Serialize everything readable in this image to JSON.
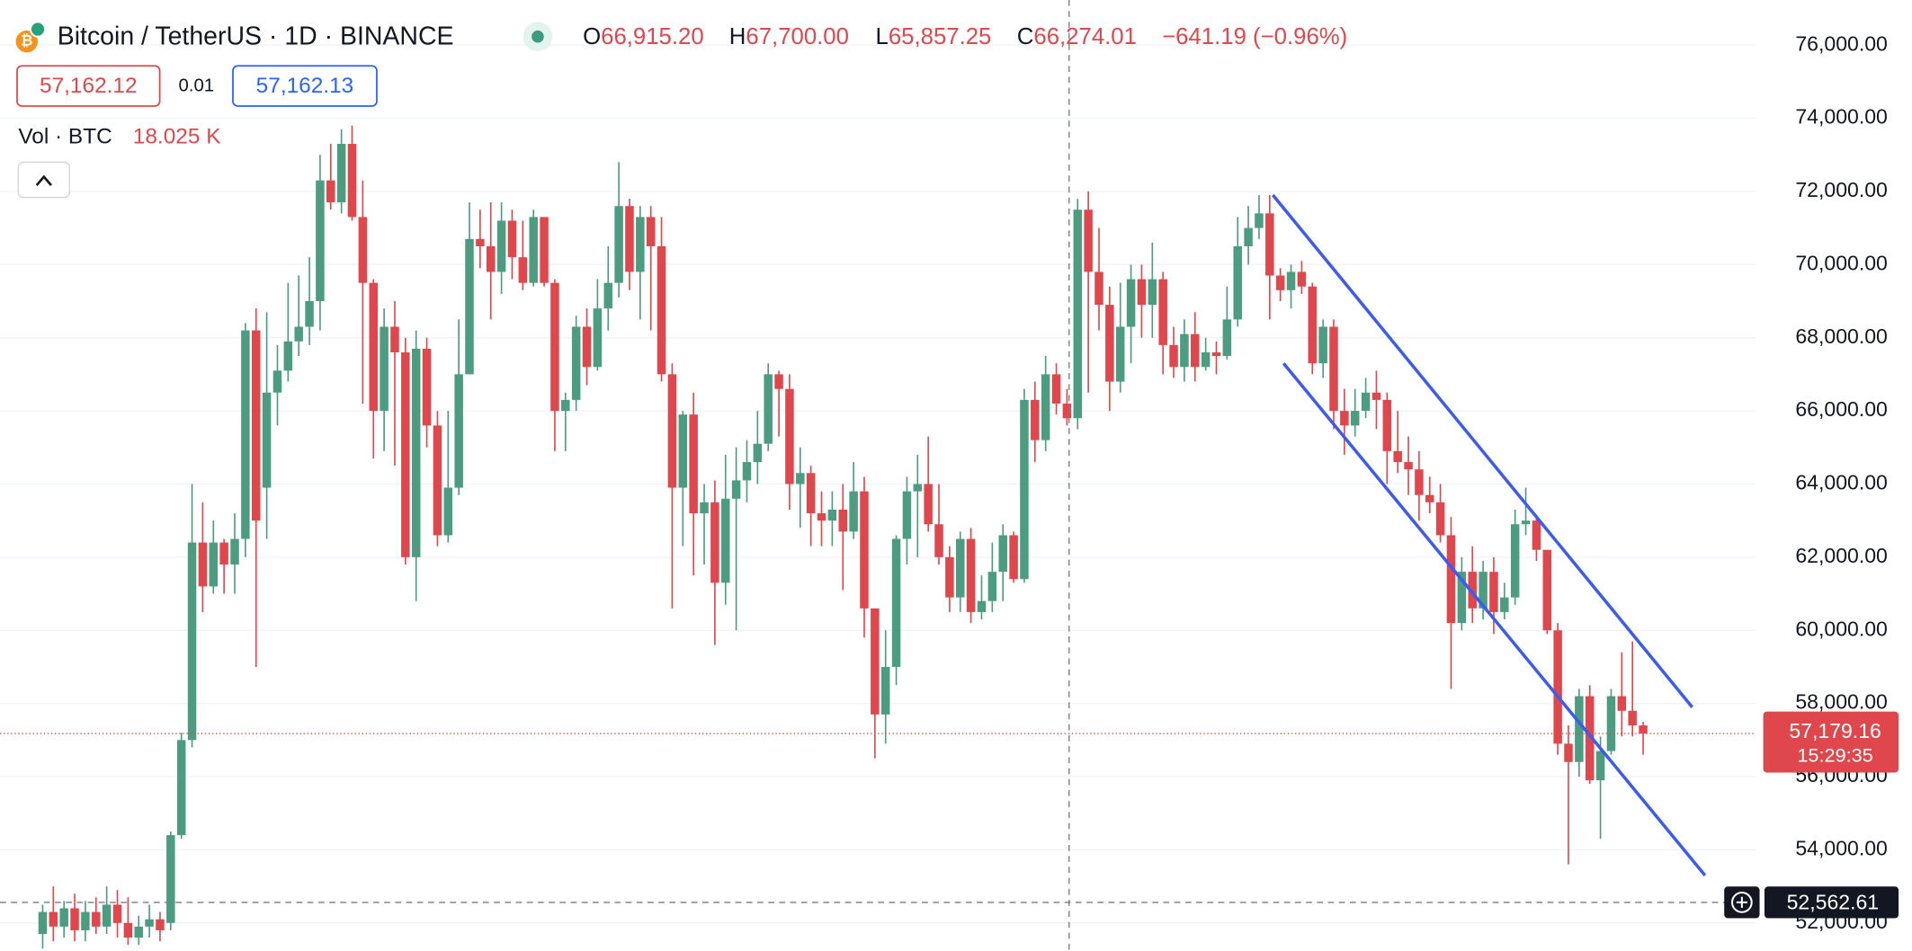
{
  "header": {
    "symbol": "Bitcoin / TetherUS · 1D · BINANCE",
    "o_label": "O",
    "open": "66,915.20",
    "h_label": "H",
    "high": "67,700.00",
    "l_label": "L",
    "low": "65,857.25",
    "c_label": "C",
    "close": "66,274.01",
    "change": "−641.19 (−0.96%)",
    "bid": "57,162.12",
    "spread": "0.01",
    "ask": "57,162.13",
    "volume_label": "Vol · BTC",
    "volume": "18.025 K"
  },
  "chart_data": {
    "type": "candlestick",
    "up_color": "#4c9c82",
    "down_color": "#e0474c",
    "series": {
      "open": [
        51700,
        52300,
        51900,
        52400,
        51800,
        52300,
        51900,
        52500,
        52000,
        51600,
        51900,
        52100,
        52000,
        54400,
        57000,
        62400,
        61200,
        62400,
        61800,
        62500,
        68200,
        63900,
        66500,
        67100,
        67900,
        68300,
        69000,
        72300,
        71700,
        73300,
        71300,
        69500,
        66000,
        68300,
        67600,
        62000,
        67700,
        65600,
        62600,
        63900,
        67000,
        70700,
        70500,
        69800,
        71200,
        70200,
        69500,
        71300,
        69500,
        66000,
        66300,
        68300,
        67200,
        68800,
        69500,
        71600,
        69800,
        71300,
        70500,
        67000,
        63900,
        65900,
        63200,
        63500,
        61300,
        63600,
        64100,
        64600,
        65100,
        67000,
        66600,
        64000,
        64300,
        63200,
        63000,
        63300,
        62700,
        63800,
        60600,
        57700,
        59000,
        62500,
        63800,
        64000,
        62900,
        62000,
        60900,
        62500,
        60500,
        60800,
        61600,
        62600,
        61400,
        66300,
        65200,
        67000,
        66200,
        65800,
        71500,
        69800,
        68900,
        66800,
        68300,
        69600,
        68900,
        69600,
        67800,
        67200,
        68100,
        67200,
        67600,
        67500,
        68500,
        70500,
        71000,
        71400,
        69700,
        69300,
        69800,
        69400,
        67300,
        68300,
        66000,
        65600,
        66000,
        66500,
        66300,
        64900,
        64600,
        64400,
        63700,
        63500,
        62600,
        60200,
        61600,
        60600,
        61600,
        60500,
        60900,
        62900,
        63000,
        62200,
        60000,
        56900,
        56400,
        58200,
        55900,
        56700,
        58200,
        57800,
        57400
      ],
      "high": [
        52500,
        53000,
        52600,
        52800,
        52600,
        52700,
        53000,
        52900,
        52700,
        52200,
        52500,
        52300,
        54500,
        57200,
        64000,
        63500,
        63000,
        62500,
        63200,
        68400,
        68800,
        68700,
        67800,
        69500,
        69700,
        70200,
        73000,
        73300,
        73700,
        73800,
        72300,
        69600,
        68800,
        69000,
        68000,
        68200,
        68000,
        66000,
        66000,
        68500,
        71700,
        71500,
        71700,
        71700,
        71500,
        71200,
        71500,
        71300,
        69600,
        66500,
        68600,
        68800,
        69600,
        70500,
        72800,
        71800,
        71600,
        71600,
        71300,
        67300,
        66000,
        66500,
        64000,
        64100,
        64800,
        65000,
        65200,
        66000,
        67300,
        67100,
        67000,
        65000,
        64500,
        63800,
        63800,
        64000,
        64600,
        64200,
        60600,
        60000,
        62600,
        64200,
        64800,
        65300,
        64000,
        62300,
        62700,
        62800,
        61500,
        62400,
        62900,
        62700,
        66600,
        66800,
        67500,
        67300,
        66600,
        71800,
        72000,
        71000,
        69400,
        69500,
        70000,
        70000,
        70600,
        69800,
        68300,
        68500,
        68700,
        68000,
        67900,
        69400,
        71300,
        71600,
        71900,
        71900,
        69900,
        70000,
        70100,
        69500,
        68500,
        68500,
        66600,
        66600,
        66900,
        67100,
        66500,
        66000,
        65300,
        64900,
        64200,
        64000,
        63100,
        62000,
        62300,
        61900,
        62000,
        61300,
        63300,
        63900,
        63100,
        62200,
        60200,
        57400,
        58400,
        58500,
        57100,
        58400,
        59400,
        59700,
        57500
      ],
      "low": [
        51300,
        51500,
        51600,
        51500,
        51500,
        51700,
        51700,
        51600,
        51400,
        51400,
        51600,
        51500,
        51800,
        54300,
        56800,
        60500,
        61000,
        61000,
        61000,
        62000,
        59000,
        62500,
        65600,
        66800,
        67500,
        67800,
        68200,
        71500,
        71400,
        71200,
        66200,
        64700,
        64900,
        64500,
        61800,
        60800,
        65000,
        62300,
        62400,
        63700,
        67000,
        69900,
        68500,
        69200,
        69600,
        69300,
        69400,
        69400,
        64900,
        64900,
        66000,
        66700,
        67100,
        68200,
        69100,
        69300,
        68500,
        68200,
        66800,
        60600,
        62300,
        61500,
        61800,
        59600,
        60700,
        60000,
        63500,
        64000,
        64900,
        65300,
        63300,
        62800,
        62300,
        62300,
        62300,
        61100,
        62500,
        59800,
        56500,
        56900,
        58500,
        61800,
        62000,
        62700,
        61800,
        60500,
        60500,
        60200,
        60300,
        60500,
        60800,
        61300,
        61300,
        64600,
        64900,
        65900,
        65600,
        65500,
        66500,
        68200,
        66000,
        66500,
        67300,
        68000,
        68000,
        67000,
        66900,
        66800,
        66800,
        67100,
        67000,
        67400,
        68300,
        70000,
        70700,
        68500,
        69000,
        68800,
        69200,
        67000,
        66900,
        65500,
        64800,
        65300,
        65800,
        65500,
        64000,
        64300,
        63700,
        63000,
        63200,
        62400,
        58400,
        60000,
        60200,
        60300,
        59900,
        60300,
        60700,
        62600,
        61900,
        59900,
        56600,
        53600,
        56000,
        55800,
        54300,
        56600,
        57100,
        57100,
        56600
      ],
      "close": [
        52300,
        51900,
        52400,
        51800,
        52300,
        51900,
        52500,
        52000,
        51600,
        51900,
        52100,
        51800,
        54400,
        57000,
        62400,
        61200,
        62400,
        61800,
        62500,
        68200,
        63000,
        66500,
        67100,
        67900,
        68300,
        69000,
        72300,
        71700,
        73300,
        71300,
        69500,
        66000,
        68300,
        67600,
        62000,
        67700,
        65600,
        62600,
        63900,
        67000,
        70700,
        70500,
        69800,
        71200,
        70200,
        69500,
        71300,
        69500,
        66000,
        66300,
        68300,
        67200,
        68800,
        69500,
        71600,
        69800,
        71300,
        70500,
        67000,
        63900,
        65900,
        63200,
        63500,
        61300,
        63600,
        64100,
        64600,
        65100,
        67000,
        66600,
        64000,
        64300,
        63200,
        63000,
        63300,
        62700,
        63800,
        60600,
        57700,
        59000,
        62500,
        63800,
        64000,
        62900,
        62000,
        60900,
        62500,
        60500,
        60800,
        61600,
        62600,
        61400,
        66300,
        65200,
        67000,
        66200,
        65800,
        71500,
        69800,
        68900,
        66800,
        68300,
        69600,
        68900,
        69600,
        67800,
        67200,
        68100,
        67200,
        67600,
        67500,
        68500,
        70500,
        71000,
        71400,
        69700,
        69300,
        69800,
        69400,
        67300,
        68300,
        66000,
        65600,
        66000,
        66500,
        66300,
        64900,
        64600,
        64400,
        63700,
        63500,
        62600,
        60200,
        61600,
        60600,
        61600,
        60500,
        60900,
        62900,
        63000,
        62200,
        60000,
        56900,
        56400,
        58200,
        55900,
        56700,
        58200,
        57800,
        57400,
        57179.16
      ]
    },
    "xlim": [
      -4,
      160.57
    ],
    "ylim": [
      51233,
      77233
    ],
    "yticks": [
      {
        "value": 52000,
        "label": "52,000.00"
      },
      {
        "value": 54000,
        "label": "54,000.00"
      },
      {
        "value": 56000,
        "label": "56,000.00"
      },
      {
        "value": 58000,
        "label": "58,000.00"
      },
      {
        "value": 60000,
        "label": "60,000.00"
      },
      {
        "value": 62000,
        "label": "62,000.00"
      },
      {
        "value": 64000,
        "label": "64,000.00"
      },
      {
        "value": 66000,
        "label": "66,000.00"
      },
      {
        "value": 68000,
        "label": "68,000.00"
      },
      {
        "value": 70000,
        "label": "70,000.00"
      },
      {
        "value": 72000,
        "label": "72,000.00"
      },
      {
        "value": 74000,
        "label": "74,000.00"
      },
      {
        "value": 76000,
        "label": "76,000.00"
      }
    ],
    "grid": true,
    "last_price": {
      "value": 57179.16,
      "label": "57,179.16"
    },
    "countdown": "15:29:35",
    "crosshair": {
      "x": 96.2,
      "price": {
        "value": 52562.61,
        "label": "52,562.61"
      }
    },
    "trend_lines": [
      {
        "color": "#3d5af1",
        "start": {
          "x": 115.3,
          "price": 71900
        },
        "end": {
          "x": 154.6,
          "price": 57900
        }
      },
      {
        "color": "#3d5af1",
        "start": {
          "x": 116.3,
          "price": 67300
        },
        "end": {
          "x": 155.8,
          "price": 53300
        }
      }
    ]
  }
}
